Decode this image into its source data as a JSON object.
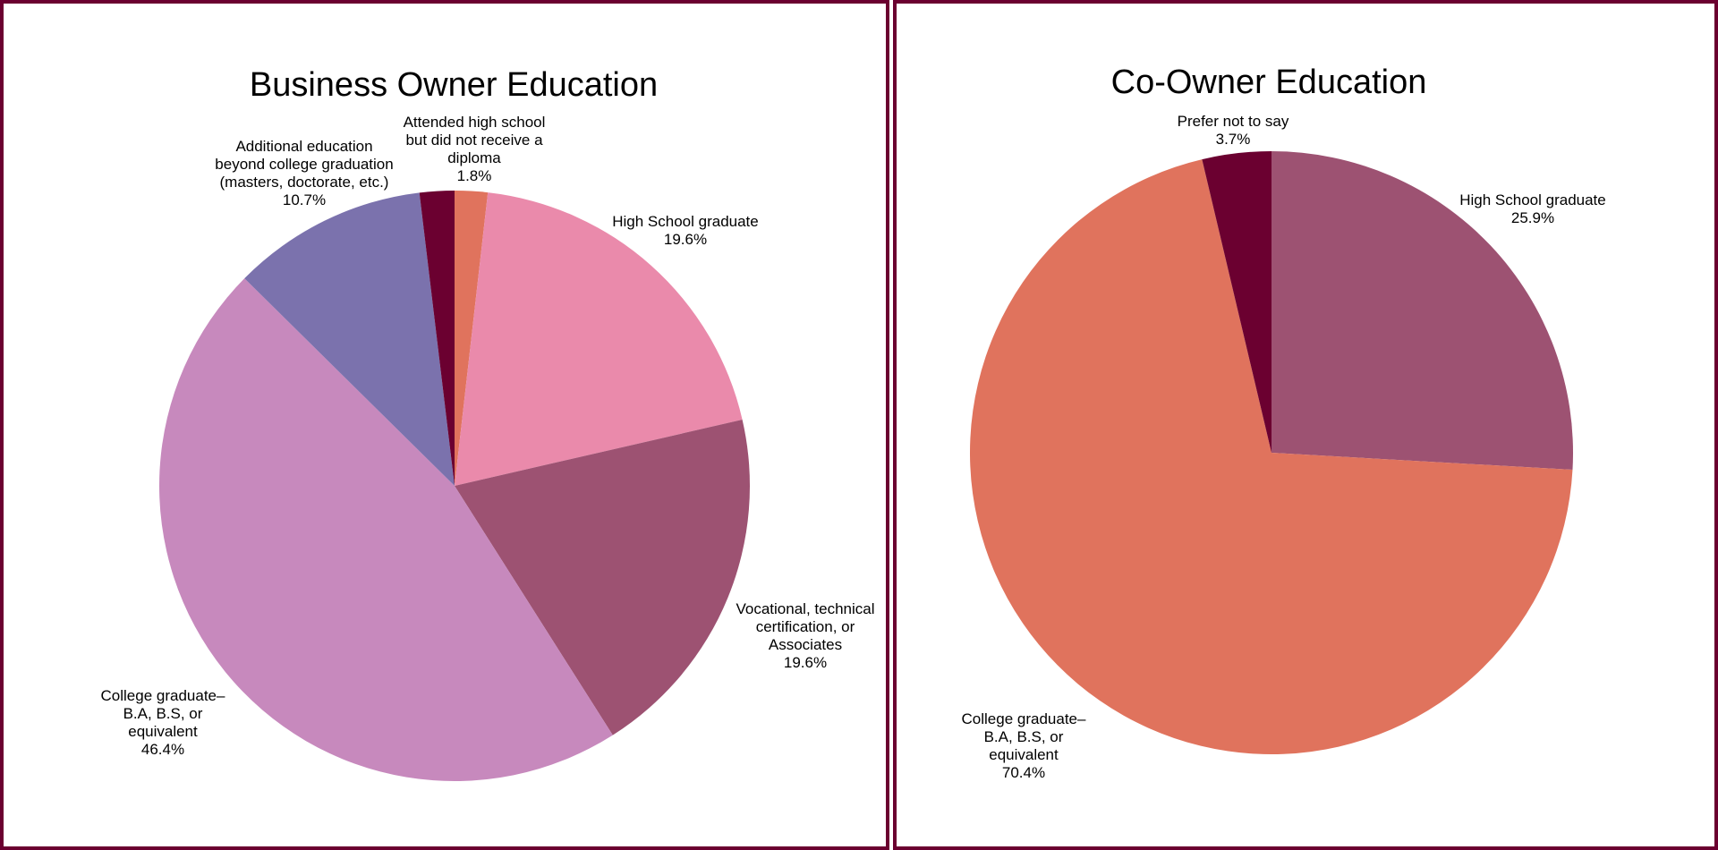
{
  "chart_data": [
    {
      "type": "pie",
      "title": "Business Owner Education",
      "slices": [
        {
          "label": [
            "Attended high school",
            "but did not receive a",
            "diploma"
          ],
          "value": 1.8,
          "percent_label": "1.8%",
          "color": "#e0735d"
        },
        {
          "label": [
            "High School graduate"
          ],
          "value": 19.6,
          "percent_label": "19.6%",
          "color": "#ea8aab"
        },
        {
          "label": [
            "Vocational, technical",
            "certification, or",
            "Associates"
          ],
          "value": 19.6,
          "percent_label": "19.6%",
          "color": "#9d5272"
        },
        {
          "label": [
            "College graduate–",
            "B.A, B.S, or",
            "equivalent"
          ],
          "value": 46.4,
          "percent_label": "46.4%",
          "color": "#c789bd"
        },
        {
          "label": [
            "Additional education",
            "beyond college graduation",
            "(masters, doctorate, etc.)"
          ],
          "value": 10.7,
          "percent_label": "10.7%",
          "color": "#7b72ad"
        },
        {
          "label": [],
          "value": 1.9,
          "percent_label": "",
          "color": "#6b0030"
        }
      ]
    },
    {
      "type": "pie",
      "title": "Co-Owner Education",
      "slices": [
        {
          "label": [
            "High School graduate"
          ],
          "value": 25.9,
          "percent_label": "25.9%",
          "color": "#9d5272"
        },
        {
          "label": [
            "College graduate–",
            "B.A, B.S, or",
            "equivalent"
          ],
          "value": 70.4,
          "percent_label": "70.4%",
          "color": "#e0735d"
        },
        {
          "label": [
            "Prefer not to say"
          ],
          "value": 3.7,
          "percent_label": "3.7%",
          "color": "#6b0030"
        }
      ]
    }
  ],
  "colors": {
    "border": "#6b0030"
  }
}
